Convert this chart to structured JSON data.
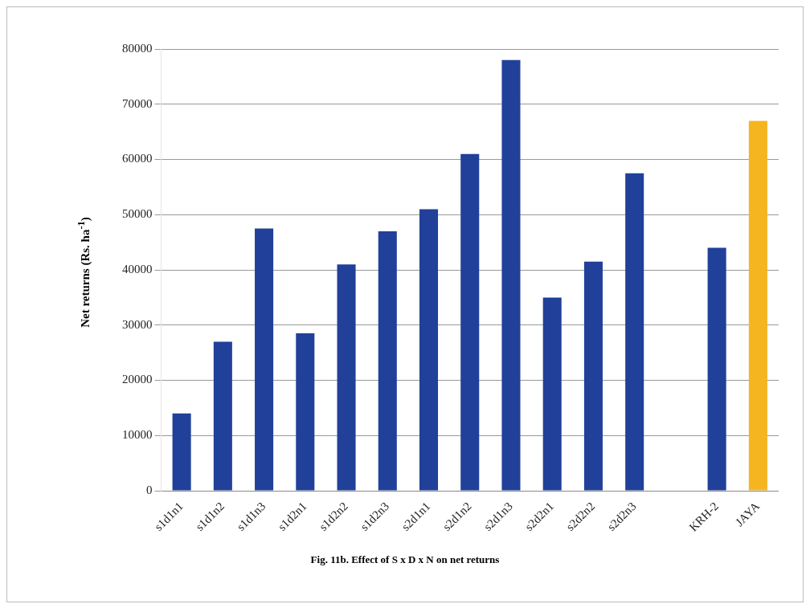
{
  "chart_data": {
    "type": "bar",
    "title": "Fig. 11b. Effect of S x D x N on net returns",
    "ylabel": "Net returns (Rs. ha$^{-1}$)",
    "categories": [
      "s1d1n1",
      "s1d1n2",
      "s1d1n3",
      "s1d2n1",
      "s1d2n2",
      "s1d2n3",
      "s2d1n1",
      "s2d1n2",
      "s2d1n3",
      "s2d2n1",
      "s2d2n2",
      "s2d2n3",
      null,
      "KRH-2",
      "JAYA"
    ],
    "values": [
      14000,
      27000,
      47500,
      28500,
      41000,
      47000,
      51000,
      61000,
      78000,
      35000,
      41500,
      57500,
      null,
      44000,
      67000
    ],
    "colors": [
      "#21409a",
      "#21409a",
      "#21409a",
      "#21409a",
      "#21409a",
      "#21409a",
      "#21409a",
      "#21409a",
      "#21409a",
      "#21409a",
      "#21409a",
      "#21409a",
      "#21409a",
      "#21409a",
      "#f5b520"
    ],
    "ylim": [
      0,
      80000
    ],
    "yticks": [
      0,
      10000,
      20000,
      30000,
      40000,
      50000,
      60000,
      70000,
      80000
    ],
    "grid": "y"
  }
}
